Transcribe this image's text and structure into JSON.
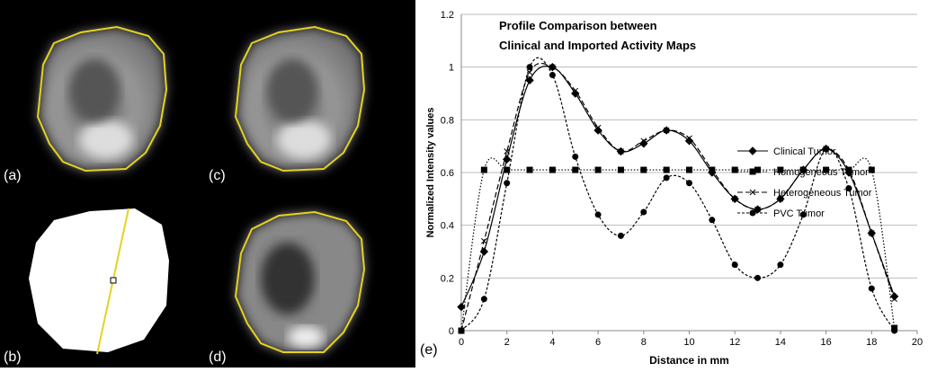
{
  "panel_labels": [
    "(a)",
    "(b)",
    "(c)",
    "(d)",
    "(e)"
  ],
  "chart_data": {
    "type": "line",
    "title": [
      "Profile Comparison between",
      "Clinical and Imported Activity Maps"
    ],
    "x_label": "Distance in mm",
    "y_label": "Normalized Intensity values",
    "x": [
      0,
      1,
      2,
      3,
      4,
      5,
      6,
      7,
      8,
      9,
      10,
      11,
      12,
      13,
      14,
      15,
      16,
      17,
      18,
      19
    ],
    "xlim": [
      0,
      20
    ],
    "xticks": [
      0,
      2,
      4,
      6,
      8,
      10,
      12,
      14,
      16,
      18,
      20
    ],
    "ylim": [
      0,
      1.2
    ],
    "yticks": [
      0,
      0.2,
      0.4,
      0.6,
      0.8,
      1,
      1.2
    ],
    "grid": true,
    "smooth": true,
    "legend": "upper right",
    "series": [
      {
        "name": "Clinical Tumor",
        "color": "#000000",
        "marker": "diamond",
        "dash": "none",
        "values": [
          0.09,
          0.3,
          0.65,
          0.95,
          1.0,
          0.9,
          0.76,
          0.68,
          0.71,
          0.76,
          0.72,
          0.6,
          0.5,
          0.46,
          0.5,
          0.61,
          0.69,
          0.6,
          0.37,
          0.13
        ]
      },
      {
        "name": "Homogeneous Tumor",
        "color": "#000000",
        "marker": "square",
        "dash": "1.5,2",
        "values": [
          0,
          0.61,
          0.61,
          0.61,
          0.61,
          0.61,
          0.61,
          0.61,
          0.61,
          0.61,
          0.61,
          0.61,
          0.61,
          0.61,
          0.61,
          0.61,
          0.61,
          0.61,
          0.61,
          0.01
        ]
      },
      {
        "name": "Heterogeneous Tumor",
        "color": "#000000",
        "marker": "x",
        "dash": "6,3",
        "values": [
          0,
          0.34,
          0.68,
          0.98,
          1.0,
          0.91,
          0.77,
          0.68,
          0.72,
          0.76,
          0.73,
          0.61,
          0.5,
          0.46,
          0.5,
          0.61,
          0.69,
          0.61,
          0.37,
          0.12
        ]
      },
      {
        "name": "PVC Tumor",
        "color": "#000000",
        "marker": "circle",
        "dash": "3,2",
        "values": [
          0,
          0.12,
          0.56,
          1.0,
          0.97,
          0.66,
          0.44,
          0.36,
          0.45,
          0.58,
          0.56,
          0.42,
          0.25,
          0.2,
          0.25,
          0.44,
          0.69,
          0.54,
          0.16,
          0.0
        ]
      }
    ]
  }
}
